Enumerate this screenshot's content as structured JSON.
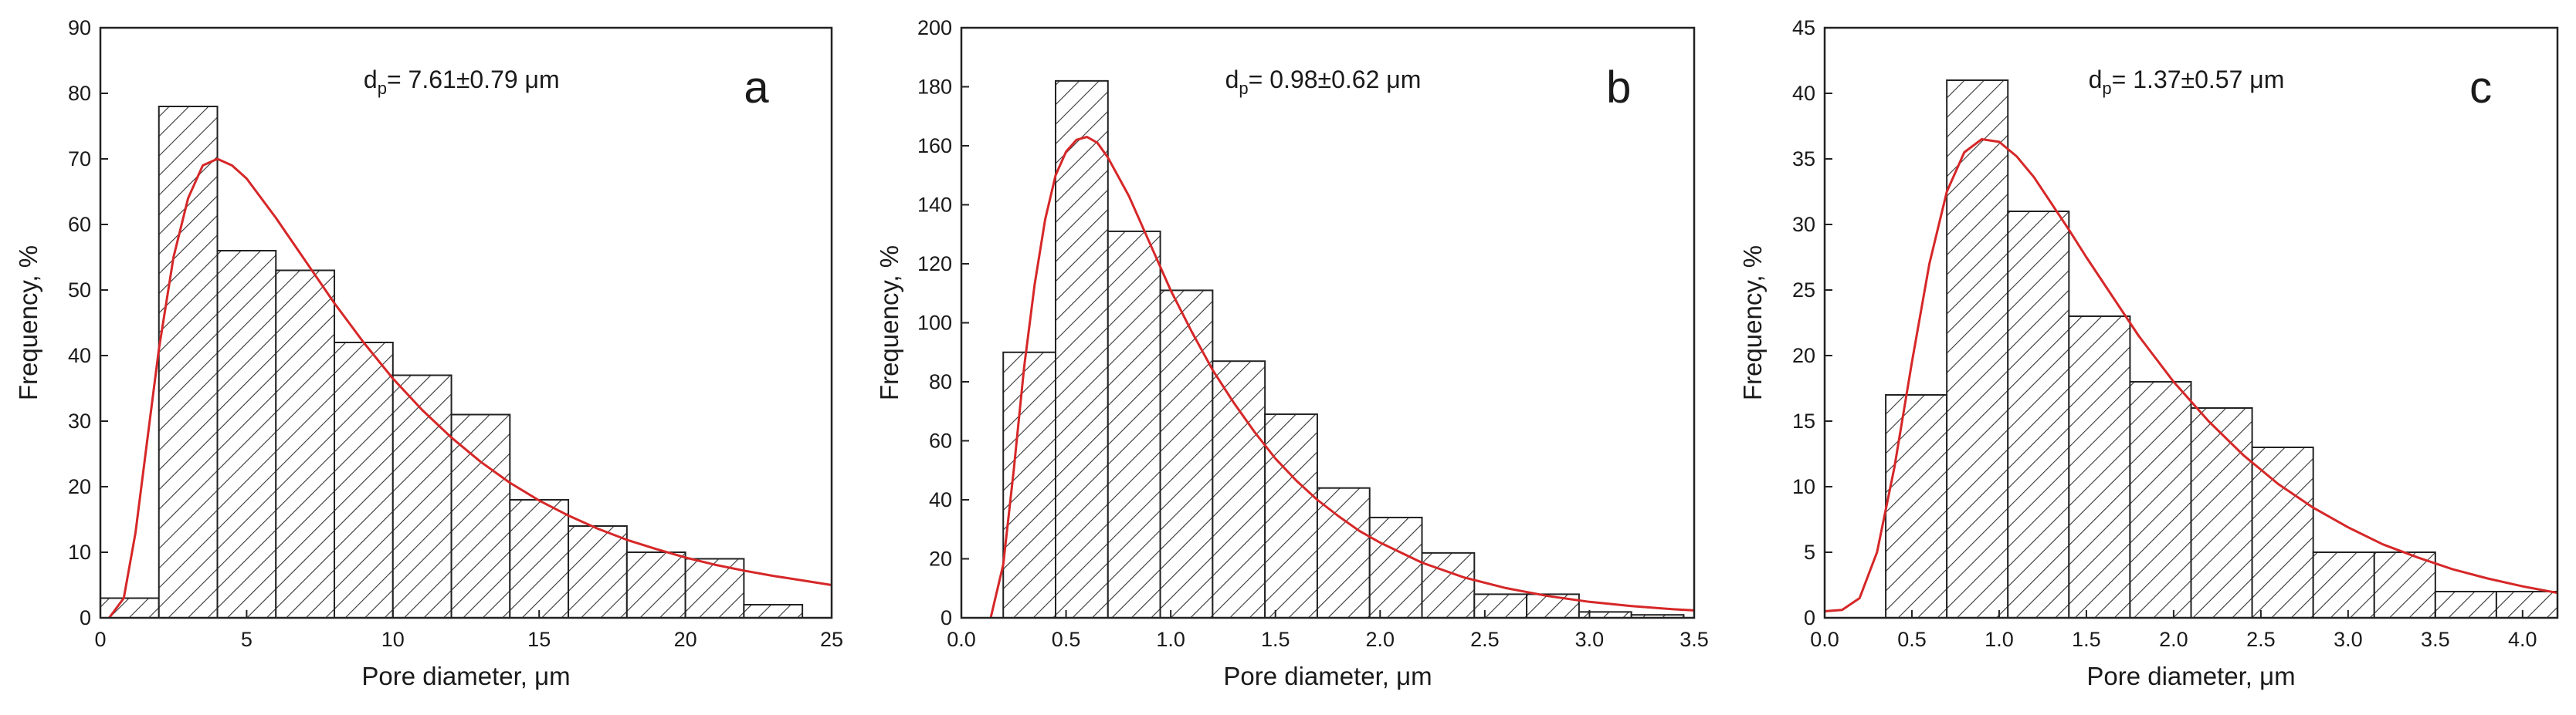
{
  "figure": {
    "hatch_color": "#333333",
    "bar_edge_color": "#222222",
    "fit_color": "#d62728"
  },
  "chart_data": [
    {
      "type": "bar",
      "panel_letter": "a",
      "annotation": {
        "prefix": "d",
        "subscript": "p",
        "text": "= 7.61±0.79 μm"
      },
      "xlabel": "Pore diameter, μm",
      "ylabel": "Frequency, %",
      "xlim": [
        0,
        25
      ],
      "ylim": [
        0,
        90
      ],
      "xticks": [
        0,
        5,
        10,
        15,
        20,
        25
      ],
      "xtick_labels": [
        "0",
        "5",
        "10",
        "15",
        "20",
        "25"
      ],
      "yticks": [
        0,
        10,
        20,
        30,
        40,
        50,
        60,
        70,
        80,
        90
      ],
      "ytick_labels": [
        "0",
        "10",
        "20",
        "30",
        "40",
        "50",
        "60",
        "70",
        "80",
        "90"
      ],
      "bin_edges": [
        0,
        2,
        4,
        6,
        8,
        10,
        12,
        14,
        16,
        18,
        20,
        22,
        24
      ],
      "values": [
        3,
        78,
        56,
        53,
        42,
        37,
        31,
        18,
        14,
        10,
        9,
        2
      ],
      "fit_curve": {
        "x": [
          0.3,
          0.8,
          1.2,
          1.6,
          2.0,
          2.5,
          3.0,
          3.5,
          4.0,
          4.5,
          5.0,
          6.0,
          7.0,
          8.0,
          9.0,
          10.0,
          11.0,
          12.0,
          13.0,
          14.0,
          15.0,
          16.0,
          17.0,
          18.0,
          19.0,
          20.0,
          21.0,
          22.0,
          23.0,
          24.0,
          25.0
        ],
        "y": [
          0,
          3,
          13,
          27,
          41,
          55,
          64,
          69,
          70,
          69,
          67,
          61,
          54.5,
          48,
          42,
          36.5,
          31.7,
          27.5,
          23.8,
          20.6,
          17.9,
          15.6,
          13.6,
          11.9,
          10.5,
          9.2,
          8.1,
          7.2,
          6.4,
          5.7,
          5.0
        ]
      },
      "grid": false,
      "legend": "none"
    },
    {
      "type": "bar",
      "panel_letter": "b",
      "annotation": {
        "prefix": "d",
        "subscript": "p",
        "text": "= 0.98±0.62 μm"
      },
      "xlabel": "Pore diameter, μm",
      "ylabel": "Frequency, %",
      "xlim": [
        0,
        3.5
      ],
      "ylim": [
        0,
        200
      ],
      "xticks": [
        0,
        0.5,
        1.0,
        1.5,
        2.0,
        2.5,
        3.0,
        3.5
      ],
      "xtick_labels": [
        "0.0",
        "0.5",
        "1.0",
        "1.5",
        "2.0",
        "2.5",
        "3.0",
        "3.5"
      ],
      "yticks": [
        0,
        20,
        40,
        60,
        80,
        100,
        120,
        140,
        160,
        180,
        200
      ],
      "ytick_labels": [
        "0",
        "20",
        "40",
        "60",
        "80",
        "100",
        "120",
        "140",
        "160",
        "180",
        "200"
      ],
      "bin_edges": [
        0.2,
        0.45,
        0.7,
        0.95,
        1.2,
        1.45,
        1.7,
        1.95,
        2.2,
        2.45,
        2.7,
        2.95,
        3.2,
        3.45
      ],
      "values": [
        90,
        182,
        131,
        111,
        87,
        69,
        44,
        34,
        22,
        8,
        8,
        2,
        1
      ],
      "fit_curve": {
        "x": [
          0.14,
          0.2,
          0.25,
          0.3,
          0.35,
          0.4,
          0.45,
          0.5,
          0.55,
          0.6,
          0.65,
          0.7,
          0.8,
          0.9,
          1.0,
          1.1,
          1.2,
          1.3,
          1.4,
          1.5,
          1.6,
          1.7,
          1.8,
          1.9,
          2.0,
          2.2,
          2.4,
          2.6,
          2.8,
          3.0,
          3.2,
          3.4,
          3.5
        ],
        "y": [
          0,
          18,
          50,
          85,
          113,
          135,
          150,
          158,
          162,
          163,
          161,
          156,
          143,
          127,
          111,
          97,
          84,
          73,
          63,
          54,
          46.5,
          40,
          34.5,
          29.5,
          25.5,
          18.7,
          13.7,
          10.1,
          7.4,
          5.4,
          4.0,
          2.9,
          2.5
        ]
      },
      "grid": false,
      "legend": "none"
    },
    {
      "type": "bar",
      "panel_letter": "c",
      "annotation": {
        "prefix": "d",
        "subscript": "p",
        "text": "= 1.37±0.57 μm"
      },
      "xlabel": "Pore diameter, μm",
      "ylabel": "Frequency, %",
      "xlim": [
        0,
        4.2
      ],
      "ylim": [
        0,
        45
      ],
      "xticks": [
        0,
        0.5,
        1.0,
        1.5,
        2.0,
        2.5,
        3.0,
        3.5,
        4.0
      ],
      "xtick_labels": [
        "0.0",
        "0.5",
        "1.0",
        "1.5",
        "2.0",
        "2.5",
        "3.0",
        "3.5",
        "4.0"
      ],
      "yticks": [
        0,
        5,
        10,
        15,
        20,
        25,
        30,
        35,
        40,
        45
      ],
      "ytick_labels": [
        "0",
        "5",
        "10",
        "15",
        "20",
        "25",
        "30",
        "35",
        "40",
        "45"
      ],
      "bin_edges": [
        0.35,
        0.7,
        1.05,
        1.4,
        1.75,
        2.1,
        2.45,
        2.8,
        3.15,
        3.5,
        3.85,
        4.2
      ],
      "values": [
        17,
        41,
        31,
        23,
        18,
        16,
        13,
        5,
        5,
        2,
        2
      ],
      "fit_curve": {
        "x": [
          0.0,
          0.1,
          0.2,
          0.3,
          0.4,
          0.5,
          0.6,
          0.7,
          0.8,
          0.9,
          1.0,
          1.1,
          1.2,
          1.3,
          1.4,
          1.5,
          1.6,
          1.8,
          2.0,
          2.2,
          2.4,
          2.6,
          2.8,
          3.0,
          3.2,
          3.4,
          3.6,
          3.8,
          4.0,
          4.2
        ],
        "y": [
          0.5,
          0.6,
          1.5,
          5,
          11.5,
          19.5,
          27,
          32.5,
          35.5,
          36.5,
          36.3,
          35.2,
          33.6,
          31.6,
          29.6,
          27.5,
          25.5,
          21.5,
          18.0,
          15.0,
          12.4,
          10.2,
          8.4,
          6.9,
          5.6,
          4.6,
          3.7,
          3.0,
          2.4,
          1.9
        ]
      },
      "grid": false,
      "legend": "none"
    }
  ]
}
